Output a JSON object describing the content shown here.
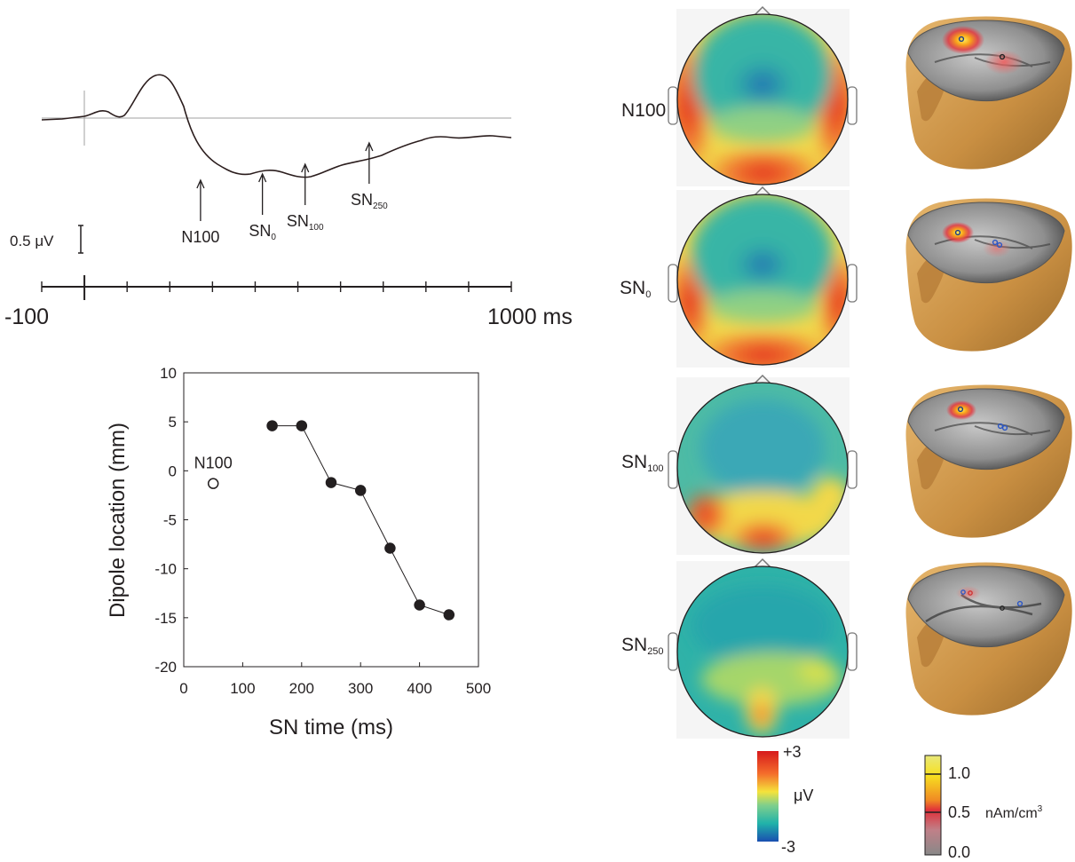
{
  "erp_panel": {
    "scale_label": "0.5 μV",
    "time_axis": {
      "start_label": "-100",
      "end_label": "1000 ms",
      "range_ms": [
        -100,
        1000
      ],
      "tick_step_ms": 100
    },
    "annotations": [
      {
        "base": "N100",
        "sub": "",
        "time_ms": 272
      },
      {
        "base": "SN",
        "sub": "0",
        "time_ms": 417
      },
      {
        "base": "SN",
        "sub": "100",
        "time_ms": 517
      },
      {
        "base": "SN",
        "sub": "250",
        "time_ms": 667
      }
    ]
  },
  "chart_data": {
    "type": "scatter",
    "title": "",
    "xlabel": "SN time (ms)",
    "ylabel": "Dipole location (mm)",
    "xlim": [
      0,
      500
    ],
    "ylim": [
      -20,
      10
    ],
    "xticks": [
      0,
      100,
      200,
      300,
      400,
      500
    ],
    "yticks": [
      10,
      5,
      0,
      -5,
      -10,
      -15,
      -20
    ],
    "series": [
      {
        "marker": "open-circle",
        "connected": false,
        "points": [
          {
            "x": 50,
            "y": -1.3,
            "label": "N100"
          }
        ]
      },
      {
        "marker": "filled-circle",
        "connected": true,
        "points": [
          {
            "x": 150,
            "y": 4.6
          },
          {
            "x": 200,
            "y": 4.6
          },
          {
            "x": 250,
            "y": -1.2
          },
          {
            "x": 300,
            "y": -2.0
          },
          {
            "x": 350,
            "y": -7.9
          },
          {
            "x": 400,
            "y": -13.7
          },
          {
            "x": 450,
            "y": -14.7
          }
        ]
      }
    ]
  },
  "maps": {
    "rows": [
      {
        "base": "N100",
        "sub": ""
      },
      {
        "base": "SN",
        "sub": "0"
      },
      {
        "base": "SN",
        "sub": "100"
      },
      {
        "base": "SN",
        "sub": "250"
      }
    ]
  },
  "legends": {
    "uv": {
      "max": "+3",
      "unit": "μV",
      "min": "-3"
    },
    "density": {
      "v1": "1.0",
      "v05": "0.5",
      "v0": "0.0",
      "unit": "nAm/cm",
      "unit_sup": "3"
    }
  },
  "colors": {
    "trace": "#2b1d1d",
    "baseline": "#a0a0a0",
    "scalp_high": "#d7191c",
    "scalp_low": "#1a5fb4",
    "head_skin": "#d4a055"
  }
}
